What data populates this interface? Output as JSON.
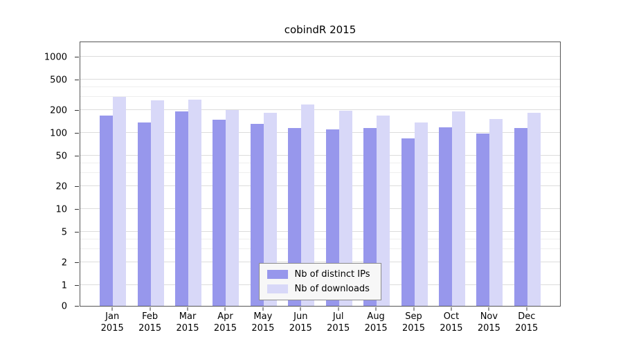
{
  "chart_data": {
    "type": "bar",
    "scale": "log",
    "title": "cobindR 2015",
    "xlabel": "",
    "ylabel": "",
    "year": "2015",
    "categories": [
      "Jan",
      "Feb",
      "Mar",
      "Apr",
      "May",
      "Jun",
      "Jul",
      "Aug",
      "Sep",
      "Oct",
      "Nov",
      "Dec"
    ],
    "series": [
      {
        "name": "Nb of distinct IPs",
        "color": "#9797ec",
        "values": [
          170,
          138,
          190,
          148,
          131,
          115,
          112,
          115,
          84,
          118,
          97,
          115
        ]
      },
      {
        "name": "Nb of downloads",
        "color": "#d8d8f8",
        "values": [
          300,
          265,
          272,
          199,
          185,
          238,
          196,
          168,
          138,
          190,
          152,
          183
        ]
      }
    ],
    "yticks": [
      0,
      1,
      2,
      5,
      10,
      20,
      50,
      100,
      200,
      500,
      1000
    ],
    "ylim": [
      0,
      1600
    ],
    "grid": true,
    "legend_position": "bottom-center-inside",
    "gridline_color": "#dcdcdc",
    "axis_color": "#555555"
  }
}
